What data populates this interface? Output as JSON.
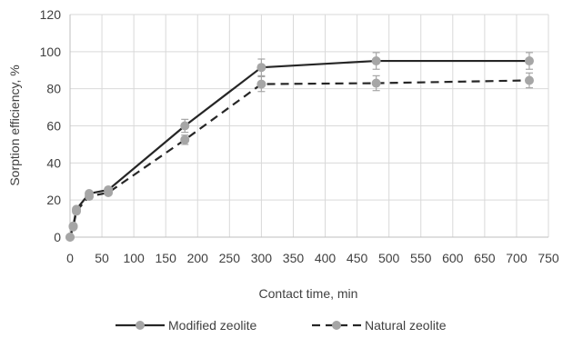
{
  "chart_data": {
    "type": "line",
    "xlabel": "Contact time, min",
    "ylabel": "Sorption efficiency, %",
    "xlim": [
      0,
      750
    ],
    "ylim": [
      0,
      120
    ],
    "x_ticks": [
      0,
      50,
      100,
      150,
      200,
      250,
      300,
      350,
      400,
      450,
      500,
      550,
      600,
      650,
      700,
      750
    ],
    "y_ticks": [
      0,
      20,
      40,
      60,
      80,
      100,
      120
    ],
    "grid": "vertical-and-horizontal",
    "legend_position": "bottom",
    "series": [
      {
        "name": "Modified zeolite",
        "line_style": "solid",
        "line_color": "#262626",
        "marker_color": "#a6a6a6",
        "x": [
          0,
          5,
          10,
          30,
          60,
          180,
          300,
          480,
          720
        ],
        "y": [
          0,
          6,
          15,
          23.5,
          25.5,
          60,
          91.5,
          95,
          95
        ],
        "error": [
          0,
          0,
          0,
          0,
          0,
          3.5,
          4.5,
          4.5,
          4.5
        ]
      },
      {
        "name": "Natural zeolite",
        "line_style": "dashed",
        "line_color": "#262626",
        "marker_color": "#a6a6a6",
        "x": [
          0,
          5,
          10,
          30,
          60,
          180,
          300,
          480,
          720
        ],
        "y": [
          0,
          5.5,
          14,
          22,
          24,
          52.5,
          82.5,
          83,
          84.5
        ],
        "error": [
          0,
          0,
          0,
          0,
          0,
          2.5,
          4,
          4,
          4
        ]
      }
    ]
  }
}
